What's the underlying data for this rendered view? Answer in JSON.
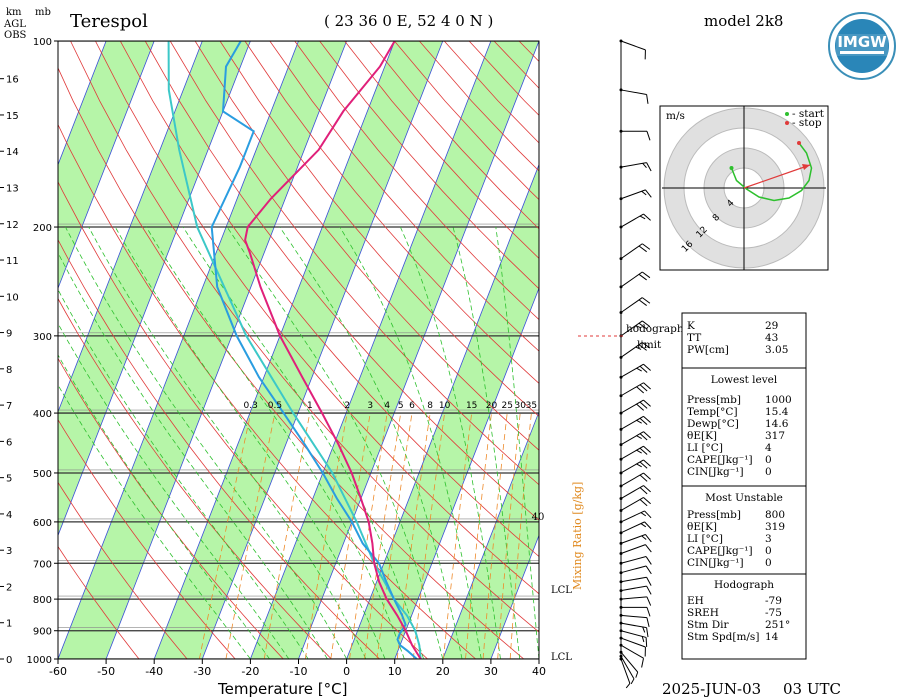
{
  "header": {
    "station": "Terespol",
    "coords": "( 23 36 0 E, 52 4 0 N )",
    "model": "model 2k8",
    "date": "2025-JUN-03",
    "time": "03 UTC",
    "logo_text": "IMGW"
  },
  "left_axes": {
    "km_label": "km",
    "mb_label": "mb",
    "agl_label": "AGL",
    "obs_label": "OBS"
  },
  "chart_data": {
    "type": "skew-t",
    "xlabel": "Temperature [°C]",
    "ylabel_right": "Mixing Ratio [g/kg]",
    "x_ticks": [
      "-60",
      "-50",
      "-40",
      "-30",
      "-20",
      "-10",
      "0",
      "10",
      "20",
      "30",
      "40"
    ],
    "pressure_ticks": [
      "100",
      "200",
      "300",
      "400",
      "500",
      "600",
      "700",
      "800",
      "900",
      "1000"
    ],
    "km_ticks": [
      "16",
      "15",
      "14",
      "13",
      "12",
      "11",
      "10",
      "9",
      "8",
      "7",
      "6",
      "5",
      "4",
      "3",
      "2",
      "1",
      "0"
    ],
    "mixing_ratio_labels": [
      "0.3",
      "0.5",
      "1",
      "2",
      "3",
      "4",
      "5",
      "6",
      "8",
      "10",
      "15",
      "20",
      "25",
      "30",
      "35"
    ],
    "isotherm_label_40": "40",
    "lcl_labels": [
      "LCL",
      "LCL"
    ],
    "temperature": [
      [
        1000,
        15.4
      ],
      [
        950,
        12.5
      ],
      [
        900,
        10
      ],
      [
        850,
        7
      ],
      [
        800,
        3.5
      ],
      [
        750,
        0.5
      ],
      [
        700,
        -2
      ],
      [
        650,
        -4
      ],
      [
        600,
        -6.5
      ],
      [
        550,
        -10
      ],
      [
        500,
        -14
      ],
      [
        450,
        -19
      ],
      [
        400,
        -25
      ],
      [
        350,
        -32
      ],
      [
        300,
        -40
      ],
      [
        250,
        -48
      ],
      [
        220,
        -53
      ],
      [
        210,
        -55
      ],
      [
        200,
        -55.5
      ],
      [
        180,
        -53
      ],
      [
        150,
        -47
      ],
      [
        130,
        -45
      ],
      [
        110,
        -41
      ],
      [
        100,
        -40
      ]
    ],
    "dewpoint": [
      [
        1000,
        14.6
      ],
      [
        970,
        12
      ],
      [
        950,
        10
      ],
      [
        930,
        9
      ],
      [
        910,
        9
      ],
      [
        880,
        9.5
      ],
      [
        850,
        8
      ],
      [
        800,
        5
      ],
      [
        750,
        2
      ],
      [
        700,
        -1
      ],
      [
        650,
        -6
      ],
      [
        600,
        -10
      ],
      [
        550,
        -15
      ],
      [
        500,
        -20
      ],
      [
        450,
        -26
      ],
      [
        400,
        -33
      ],
      [
        350,
        -41
      ],
      [
        300,
        -49
      ],
      [
        250,
        -57
      ],
      [
        200,
        -63
      ],
      [
        160,
        -62
      ],
      [
        140,
        -62
      ],
      [
        130,
        -70
      ],
      [
        110,
        -73
      ],
      [
        100,
        -72
      ]
    ],
    "parcel": [
      [
        1000,
        15.4
      ],
      [
        950,
        14
      ],
      [
        900,
        12
      ],
      [
        850,
        9
      ],
      [
        800,
        5
      ],
      [
        700,
        -2
      ],
      [
        600,
        -9
      ],
      [
        500,
        -18
      ],
      [
        400,
        -31
      ],
      [
        300,
        -47
      ],
      [
        200,
        -66
      ],
      [
        150,
        -76
      ],
      [
        120,
        -83
      ],
      [
        100,
        -87
      ]
    ],
    "temp_color": "#e0207a",
    "dewpoint_color": "#2a9de0",
    "parcel_color": "#3cc8c8",
    "dry_adiabat_color": "#e03a3a",
    "moist_adiabat_color": "#2ec02e",
    "mixing_ratio_color": "#ee8a2a",
    "isotherm_color": "#3a4fd8",
    "band_color": "#b6f5a8",
    "wind_barbs": [
      {
        "p": 1000,
        "dir": 200,
        "spd": 5
      },
      {
        "p": 990,
        "dir": 210,
        "spd": 7
      },
      {
        "p": 975,
        "dir": 220,
        "spd": 9
      },
      {
        "p": 950,
        "dir": 240,
        "spd": 12
      },
      {
        "p": 925,
        "dir": 250,
        "spd": 14
      },
      {
        "p": 900,
        "dir": 255,
        "spd": 15
      },
      {
        "p": 875,
        "dir": 260,
        "spd": 15
      },
      {
        "p": 850,
        "dir": 265,
        "spd": 14
      },
      {
        "p": 825,
        "dir": 270,
        "spd": 12
      },
      {
        "p": 800,
        "dir": 275,
        "spd": 10
      },
      {
        "p": 775,
        "dir": 280,
        "spd": 10
      },
      {
        "p": 750,
        "dir": 280,
        "spd": 11
      },
      {
        "p": 725,
        "dir": 285,
        "spd": 12
      },
      {
        "p": 700,
        "dir": 285,
        "spd": 13
      },
      {
        "p": 675,
        "dir": 290,
        "spd": 14
      },
      {
        "p": 650,
        "dir": 290,
        "spd": 15
      },
      {
        "p": 625,
        "dir": 295,
        "spd": 16
      },
      {
        "p": 600,
        "dir": 295,
        "spd": 18
      },
      {
        "p": 575,
        "dir": 300,
        "spd": 20
      },
      {
        "p": 550,
        "dir": 300,
        "spd": 22
      },
      {
        "p": 525,
        "dir": 300,
        "spd": 24
      },
      {
        "p": 500,
        "dir": 300,
        "spd": 25
      },
      {
        "p": 475,
        "dir": 300,
        "spd": 27
      },
      {
        "p": 450,
        "dir": 300,
        "spd": 28
      },
      {
        "p": 425,
        "dir": 300,
        "spd": 29
      },
      {
        "p": 400,
        "dir": 300,
        "spd": 30
      },
      {
        "p": 375,
        "dir": 300,
        "spd": 30
      },
      {
        "p": 350,
        "dir": 300,
        "spd": 29
      },
      {
        "p": 325,
        "dir": 305,
        "spd": 27
      },
      {
        "p": 300,
        "dir": 305,
        "spd": 25
      },
      {
        "p": 275,
        "dir": 305,
        "spd": 23
      },
      {
        "p": 250,
        "dir": 305,
        "spd": 22
      },
      {
        "p": 225,
        "dir": 305,
        "spd": 20
      },
      {
        "p": 200,
        "dir": 300,
        "spd": 18
      },
      {
        "p": 180,
        "dir": 290,
        "spd": 16
      },
      {
        "p": 160,
        "dir": 280,
        "spd": 15
      },
      {
        "p": 140,
        "dir": 270,
        "spd": 14
      },
      {
        "p": 120,
        "dir": 260,
        "spd": 12
      },
      {
        "p": 100,
        "dir": 250,
        "spd": 10
      }
    ]
  },
  "hodograph": {
    "units": "m/s",
    "start_label": "- start",
    "stop_label": "- stop",
    "ring_labels": [
      "4",
      "8",
      "12",
      "16"
    ],
    "start_color": "#2ec02e",
    "stop_color": "#e03a3a",
    "curve_color": "#2ec02e",
    "storm_vector_color": "#e03a3a"
  },
  "hodograph_limit": {
    "line1": "hodograph",
    "line2": "limit"
  },
  "info": {
    "indices": [
      {
        "label": "K",
        "value": "29"
      },
      {
        "label": "TT",
        "value": "43"
      },
      {
        "label": "PW[cm]",
        "value": "3.05"
      }
    ],
    "lowest_level_title": "Lowest level",
    "lowest_level": [
      {
        "label": "Press[mb]",
        "value": "1000"
      },
      {
        "label": "Temp[°C]",
        "value": "15.4"
      },
      {
        "label": "Dewp[°C]",
        "value": "14.6"
      },
      {
        "label": "θE[K]",
        "value": "317"
      },
      {
        "label": "LI [°C]",
        "value": "4"
      },
      {
        "label": "CAPE[Jkg⁻¹]",
        "value": "0"
      },
      {
        "label": "CIN[Jkg⁻¹]",
        "value": "0"
      }
    ],
    "most_unstable_title": "Most Unstable",
    "most_unstable": [
      {
        "label": "Press[mb]",
        "value": "800"
      },
      {
        "label": "θE[K]",
        "value": "319"
      },
      {
        "label": "LI [°C]",
        "value": "3"
      },
      {
        "label": "CAPE[Jkg⁻¹]",
        "value": "0"
      },
      {
        "label": "CIN[Jkg⁻¹]",
        "value": "0"
      }
    ],
    "hodograph_title": "Hodograph",
    "hodograph_rows": [
      {
        "label": "EH",
        "value": "-79"
      },
      {
        "label": "SREH",
        "value": "-75"
      },
      {
        "label": "Stm Dir",
        "value": "251°"
      },
      {
        "label": "Stm Spd[m/s]",
        "value": "14"
      }
    ]
  }
}
